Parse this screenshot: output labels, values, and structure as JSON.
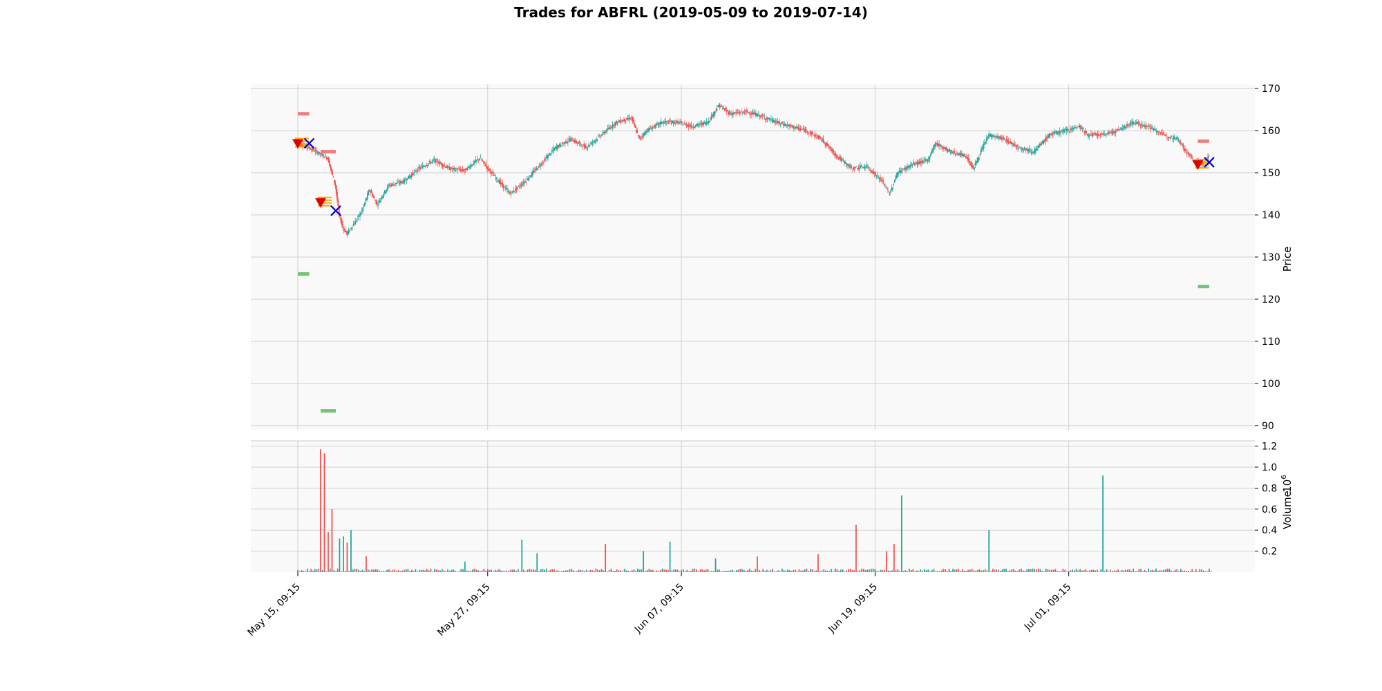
{
  "chart_data": {
    "type": "candlestick",
    "title": "Trades for ABFRL (2019-05-09 to 2019-07-14)",
    "colors": {
      "up": "#26a69a",
      "down": "#ef5350",
      "panel_bg": "#f9f9f9",
      "grid": "#d0d0d0",
      "sell_marker": "#e00000",
      "entry_band": "#ffa500",
      "exit_marker": "#0000cc",
      "stop_level": "#f07070",
      "target_level": "#66bb6a"
    },
    "price_panel": {
      "ylabel": "Price",
      "ylim": [
        89,
        171
      ],
      "yticks": [
        "90",
        "100",
        "110",
        "120",
        "130",
        "140",
        "150",
        "160",
        "170"
      ],
      "trend_points": [
        {
          "i": 0,
          "p": 157
        },
        {
          "i": 3,
          "p": 156
        },
        {
          "i": 6,
          "p": 154.5
        },
        {
          "i": 8,
          "p": 153.5
        },
        {
          "i": 10,
          "p": 147
        },
        {
          "i": 11,
          "p": 140
        },
        {
          "i": 12,
          "p": 137
        },
        {
          "i": 13,
          "p": 135.5
        },
        {
          "i": 15,
          "p": 138
        },
        {
          "i": 17,
          "p": 141
        },
        {
          "i": 19,
          "p": 146
        },
        {
          "i": 21,
          "p": 142.5
        },
        {
          "i": 24,
          "p": 147
        },
        {
          "i": 28,
          "p": 148
        },
        {
          "i": 32,
          "p": 151
        },
        {
          "i": 36,
          "p": 153
        },
        {
          "i": 40,
          "p": 151
        },
        {
          "i": 44,
          "p": 150.5
        },
        {
          "i": 48,
          "p": 153.5
        },
        {
          "i": 52,
          "p": 149
        },
        {
          "i": 56,
          "p": 145
        },
        {
          "i": 60,
          "p": 148
        },
        {
          "i": 64,
          "p": 152
        },
        {
          "i": 68,
          "p": 156
        },
        {
          "i": 72,
          "p": 158
        },
        {
          "i": 76,
          "p": 156
        },
        {
          "i": 80,
          "p": 159
        },
        {
          "i": 84,
          "p": 162
        },
        {
          "i": 88,
          "p": 163
        },
        {
          "i": 90,
          "p": 158
        },
        {
          "i": 92,
          "p": 160
        },
        {
          "i": 96,
          "p": 162
        },
        {
          "i": 100,
          "p": 162
        },
        {
          "i": 104,
          "p": 161
        },
        {
          "i": 108,
          "p": 162
        },
        {
          "i": 111,
          "p": 166
        },
        {
          "i": 114,
          "p": 164
        },
        {
          "i": 118,
          "p": 164.5
        },
        {
          "i": 122,
          "p": 163.5
        },
        {
          "i": 126,
          "p": 162
        },
        {
          "i": 130,
          "p": 161
        },
        {
          "i": 134,
          "p": 160
        },
        {
          "i": 138,
          "p": 158
        },
        {
          "i": 142,
          "p": 154
        },
        {
          "i": 146,
          "p": 151
        },
        {
          "i": 150,
          "p": 151.5
        },
        {
          "i": 154,
          "p": 148
        },
        {
          "i": 156,
          "p": 145
        },
        {
          "i": 158,
          "p": 150
        },
        {
          "i": 162,
          "p": 152
        },
        {
          "i": 166,
          "p": 153
        },
        {
          "i": 168,
          "p": 157
        },
        {
          "i": 172,
          "p": 155
        },
        {
          "i": 176,
          "p": 154
        },
        {
          "i": 178,
          "p": 151
        },
        {
          "i": 182,
          "p": 159
        },
        {
          "i": 186,
          "p": 158
        },
        {
          "i": 190,
          "p": 156
        },
        {
          "i": 194,
          "p": 155
        },
        {
          "i": 198,
          "p": 159
        },
        {
          "i": 202,
          "p": 160
        },
        {
          "i": 206,
          "p": 161
        },
        {
          "i": 208,
          "p": 159
        },
        {
          "i": 212,
          "p": 159
        },
        {
          "i": 216,
          "p": 160
        },
        {
          "i": 220,
          "p": 162
        },
        {
          "i": 224,
          "p": 161
        },
        {
          "i": 228,
          "p": 159
        },
        {
          "i": 232,
          "p": 158
        },
        {
          "i": 234,
          "p": 155
        },
        {
          "i": 236,
          "p": 153
        },
        {
          "i": 238,
          "p": 152
        },
        {
          "i": 240,
          "p": 154
        }
      ],
      "trades": [
        {
          "entry_i": 0,
          "entry_price": 157,
          "exit_i": 3,
          "exit_price": 157,
          "stop": 164,
          "target": 126
        },
        {
          "entry_i": 6,
          "entry_price": 143,
          "exit_i": 10,
          "exit_price": 141,
          "stop": 155,
          "target": 93.5
        },
        {
          "entry_i": 237,
          "entry_price": 152,
          "exit_i": 240,
          "exit_price": 152.5,
          "stop": 157.5,
          "target": 123
        }
      ]
    },
    "volume_panel": {
      "ylabel": "Volume",
      "exponent": "6",
      "ylim": [
        0,
        1.25
      ],
      "yticks": [
        "0.2",
        "0.4",
        "0.6",
        "0.8",
        "1.0",
        "1.2"
      ],
      "spikes": [
        {
          "i": 6,
          "v": 1.17,
          "up": false
        },
        {
          "i": 7,
          "v": 1.13,
          "up": false
        },
        {
          "i": 8,
          "v": 0.38,
          "up": false
        },
        {
          "i": 9,
          "v": 0.6,
          "up": false
        },
        {
          "i": 11,
          "v": 0.32,
          "up": true
        },
        {
          "i": 12,
          "v": 0.34,
          "up": true
        },
        {
          "i": 13,
          "v": 0.28,
          "up": false
        },
        {
          "i": 14,
          "v": 0.4,
          "up": true
        },
        {
          "i": 18,
          "v": 0.15,
          "up": false
        },
        {
          "i": 44,
          "v": 0.1,
          "up": true
        },
        {
          "i": 59,
          "v": 0.31,
          "up": true
        },
        {
          "i": 63,
          "v": 0.18,
          "up": true
        },
        {
          "i": 81,
          "v": 0.27,
          "up": false
        },
        {
          "i": 91,
          "v": 0.2,
          "up": true
        },
        {
          "i": 98,
          "v": 0.29,
          "up": true
        },
        {
          "i": 110,
          "v": 0.13,
          "up": true
        },
        {
          "i": 121,
          "v": 0.15,
          "up": false
        },
        {
          "i": 137,
          "v": 0.17,
          "up": false
        },
        {
          "i": 147,
          "v": 0.45,
          "up": false
        },
        {
          "i": 155,
          "v": 0.2,
          "up": false
        },
        {
          "i": 157,
          "v": 0.27,
          "up": false
        },
        {
          "i": 159,
          "v": 0.73,
          "up": true
        },
        {
          "i": 182,
          "v": 0.4,
          "up": true
        },
        {
          "i": 212,
          "v": 0.92,
          "up": true
        }
      ]
    },
    "x_axis": {
      "n": 241,
      "ticks": [
        {
          "i": 0,
          "label": "May 15, 09:15"
        },
        {
          "i": 50,
          "label": "May 27, 09:15"
        },
        {
          "i": 101,
          "label": "Jun 07, 09:15"
        },
        {
          "i": 152,
          "label": "Jun 19, 09:15"
        },
        {
          "i": 203,
          "label": "Jul 01, 09:15"
        }
      ]
    }
  }
}
